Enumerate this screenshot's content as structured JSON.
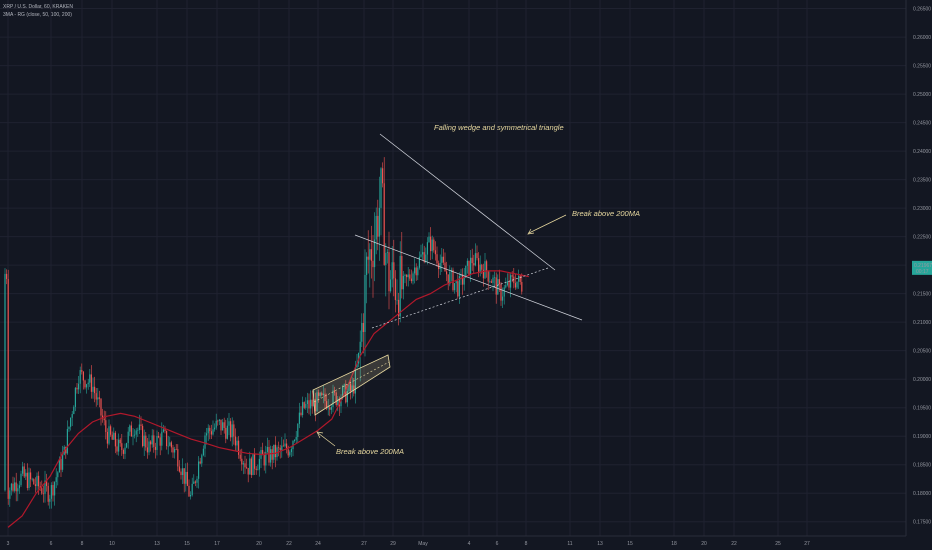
{
  "chart_data": {
    "type": "candlestick",
    "title": "XRP / U.S. Dollar, 60, KRAKEN",
    "indicator_label": "3MA - RG (close, 50, 100, 200)",
    "ylim": [
      0.1725,
      0.2665
    ],
    "y_ticks": [
      "0.26500",
      "0.26000",
      "0.25500",
      "0.25000",
      "0.24500",
      "0.24000",
      "0.23500",
      "0.23000",
      "0.22500",
      "0.22000",
      "0.21500",
      "0.21000",
      "0.20500",
      "0.20000",
      "0.19500",
      "0.19000",
      "0.18500",
      "0.18000",
      "0.17500"
    ],
    "x_ticks": [
      "3",
      "6",
      "8",
      "10",
      "13",
      "15",
      "17",
      "20",
      "22",
      "24",
      "27",
      "29",
      "May",
      "4",
      "6",
      "8",
      "11",
      "13",
      "15",
      "18",
      "20",
      "22",
      "25",
      "27"
    ],
    "last_price_label": "0.21967",
    "last_price_sub": "00:17",
    "grid": true,
    "annotations": [
      "Falling wedge and symmetrical triangle",
      "Break above 200MA",
      "Break above 200MA"
    ],
    "price_path": [
      [
        3,
        0.1805
      ],
      [
        4,
        0.183
      ],
      [
        5,
        0.1815
      ],
      [
        6,
        0.18
      ],
      [
        7,
        0.187
      ],
      [
        8,
        0.201
      ],
      [
        8.5,
        0.2
      ],
      [
        9,
        0.199
      ],
      [
        10,
        0.1905
      ],
      [
        11,
        0.1875
      ],
      [
        12,
        0.192
      ],
      [
        13,
        0.188
      ],
      [
        14,
        0.19
      ],
      [
        15,
        0.187
      ],
      [
        16,
        0.179
      ],
      [
        16.5,
        0.185
      ],
      [
        17,
        0.1905
      ],
      [
        18,
        0.192
      ],
      [
        19,
        0.1905
      ],
      [
        20,
        0.1845
      ],
      [
        21,
        0.186
      ],
      [
        22,
        0.187
      ],
      [
        23,
        0.188
      ],
      [
        24,
        0.195
      ],
      [
        25,
        0.196
      ],
      [
        26,
        0.1965
      ],
      [
        27,
        0.1975
      ],
      [
        27.5,
        0.198
      ],
      [
        28,
        0.205
      ],
      [
        28.5,
        0.22
      ],
      [
        29,
        0.225
      ],
      [
        29.5,
        0.232
      ],
      [
        30,
        0.218
      ],
      [
        31,
        0.216
      ],
      [
        32,
        0.22
      ],
      [
        33,
        0.224
      ],
      [
        34,
        0.219
      ],
      [
        35,
        0.216
      ],
      [
        36,
        0.221
      ],
      [
        37,
        0.219
      ],
      [
        38,
        0.215
      ],
      [
        39,
        0.2175
      ],
      [
        39.5,
        0.2165
      ],
      [
        40,
        0.2185
      ]
    ],
    "ma_200_path": [
      [
        3,
        0.174
      ],
      [
        4,
        0.176
      ],
      [
        5,
        0.18
      ],
      [
        6,
        0.183
      ],
      [
        7,
        0.1875
      ],
      [
        8,
        0.1905
      ],
      [
        9,
        0.1925
      ],
      [
        10,
        0.1935
      ],
      [
        11,
        0.194
      ],
      [
        12,
        0.1935
      ],
      [
        13,
        0.1925
      ],
      [
        14,
        0.1915
      ],
      [
        15,
        0.1905
      ],
      [
        16,
        0.1895
      ],
      [
        17,
        0.1888
      ],
      [
        18,
        0.188
      ],
      [
        19,
        0.1875
      ],
      [
        20,
        0.187
      ],
      [
        21,
        0.1868
      ],
      [
        22,
        0.187
      ],
      [
        23,
        0.188
      ],
      [
        24,
        0.1895
      ],
      [
        25,
        0.191
      ],
      [
        26,
        0.193
      ],
      [
        27,
        0.198
      ],
      [
        28,
        0.204
      ],
      [
        29,
        0.208
      ],
      [
        30,
        0.21
      ],
      [
        31,
        0.212
      ],
      [
        32,
        0.214
      ],
      [
        33,
        0.215
      ],
      [
        34,
        0.2165
      ],
      [
        35,
        0.2175
      ],
      [
        36,
        0.2185
      ],
      [
        37,
        0.219
      ],
      [
        38,
        0.219
      ],
      [
        39,
        0.2185
      ],
      [
        40,
        0.218
      ]
    ]
  }
}
